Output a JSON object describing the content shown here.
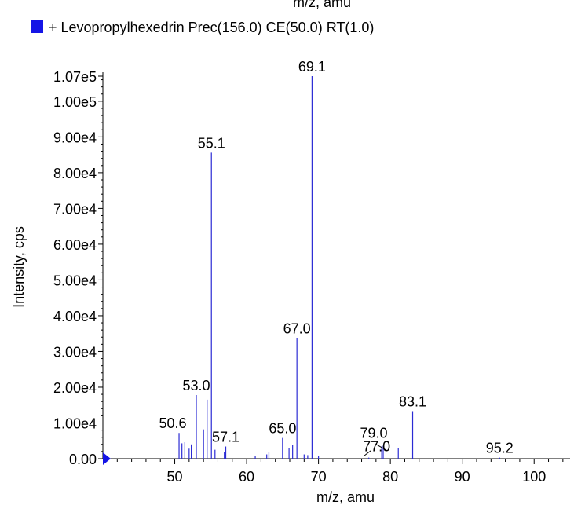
{
  "chart_data": {
    "type": "bar",
    "top_cut_label": "m/z, amu",
    "legend": {
      "label": "+ Levopropylhexedrin Prec(156.0) CE(50.0) RT(1.0)",
      "color": "#1515e6",
      "placement": "top-left"
    },
    "xlabel": "m/z, amu",
    "ylabel": "Intensity, cps",
    "xlim": [
      40,
      105
    ],
    "ylim": [
      0,
      107000
    ],
    "x_ticks": [
      "50",
      "60",
      "70",
      "80",
      "90",
      "100"
    ],
    "x_tick_values": [
      50,
      60,
      70,
      80,
      90,
      100
    ],
    "y_ticks": [
      "0.00",
      "1.00e4",
      "2.00e4",
      "3.00e4",
      "4.00e4",
      "5.00e4",
      "6.00e4",
      "7.00e4",
      "8.00e4",
      "9.00e4",
      "1.00e5",
      "1.07e5"
    ],
    "y_tick_values": [
      0,
      10000,
      20000,
      30000,
      40000,
      50000,
      60000,
      70000,
      80000,
      90000,
      100000,
      107000
    ],
    "series_color": "#2b2bd4",
    "peaks": [
      {
        "x": 50.6,
        "y": 7200
      },
      {
        "x": 51.0,
        "y": 4300
      },
      {
        "x": 51.4,
        "y": 4600
      },
      {
        "x": 52.0,
        "y": 2800
      },
      {
        "x": 52.3,
        "y": 4000
      },
      {
        "x": 53.0,
        "y": 17800
      },
      {
        "x": 54.0,
        "y": 8200
      },
      {
        "x": 54.5,
        "y": 16500
      },
      {
        "x": 55.1,
        "y": 85600
      },
      {
        "x": 55.6,
        "y": 2500
      },
      {
        "x": 57.1,
        "y": 3400
      },
      {
        "x": 56.9,
        "y": 1800
      },
      {
        "x": 61.2,
        "y": 700
      },
      {
        "x": 62.8,
        "y": 1200
      },
      {
        "x": 63.1,
        "y": 1800
      },
      {
        "x": 65.0,
        "y": 5800
      },
      {
        "x": 65.9,
        "y": 3000
      },
      {
        "x": 66.4,
        "y": 3800
      },
      {
        "x": 67.0,
        "y": 33700
      },
      {
        "x": 68.0,
        "y": 1200
      },
      {
        "x": 68.5,
        "y": 1000
      },
      {
        "x": 69.1,
        "y": 107000
      },
      {
        "x": 70.0,
        "y": 700
      },
      {
        "x": 77.0,
        "y": 300
      },
      {
        "x": 78.8,
        "y": 3400
      },
      {
        "x": 79.0,
        "y": 3600
      },
      {
        "x": 81.1,
        "y": 3000
      },
      {
        "x": 83.1,
        "y": 13300
      },
      {
        "x": 95.2,
        "y": 300
      }
    ],
    "peak_labels": [
      "69.1",
      "55.1",
      "67.0",
      "53.0",
      "83.1",
      "50.6",
      "65.0",
      "57.1",
      "79.0",
      "77.0",
      "95.2"
    ]
  }
}
